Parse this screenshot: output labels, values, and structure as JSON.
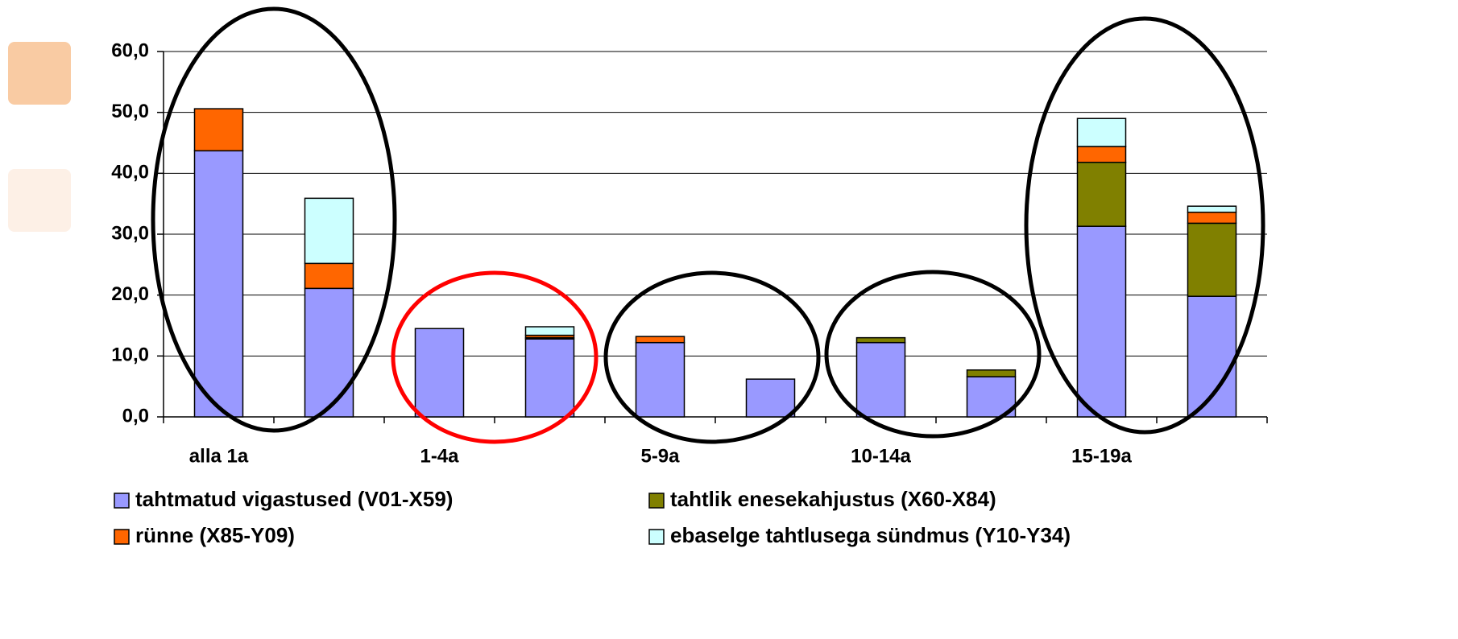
{
  "chart_data": {
    "type": "stacked_bar",
    "categories": [
      "alla 1a",
      null,
      "1-4a",
      null,
      "5-9a",
      null,
      "10-14a",
      null,
      "15-19a",
      null
    ],
    "series": [
      {
        "name": "tahtmatud vigastused (V01-X59)",
        "color": "#9999ff",
        "values": [
          43.7,
          21.1,
          14.5,
          12.8,
          12.2,
          6.2,
          12.2,
          6.6,
          31.3,
          19.8
        ]
      },
      {
        "name": "tahtlik enesekahjustus (X60-X84)",
        "color": "#808000",
        "values": [
          0,
          0,
          0,
          0.2,
          0,
          0,
          0.8,
          1.1,
          10.5,
          12.0
        ]
      },
      {
        "name": "rünne (X85-Y09)",
        "color": "#ff6600",
        "values": [
          6.9,
          4.1,
          0,
          0.4,
          1.0,
          0,
          0,
          0,
          2.6,
          1.8
        ]
      },
      {
        "name": "ebaselge tahtlusega sündmus (Y10-Y34)",
        "color": "#ccffff",
        "values": [
          0,
          10.7,
          0,
          1.4,
          0,
          0,
          0,
          0,
          4.6,
          1.0
        ]
      }
    ],
    "ylim": [
      0,
      60
    ],
    "yticks": [
      {
        "value": 0,
        "label": "0,0"
      },
      {
        "value": 10,
        "label": "10,0"
      },
      {
        "value": 20,
        "label": "20,0"
      },
      {
        "value": 30,
        "label": "30,0"
      },
      {
        "value": 40,
        "label": "40,0"
      },
      {
        "value": 50,
        "label": "50,0"
      },
      {
        "value": 60,
        "label": "60,0"
      }
    ],
    "grid": true
  }
}
